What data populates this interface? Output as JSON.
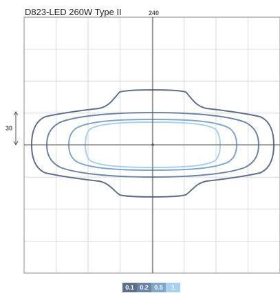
{
  "title": "D823-LED 260W Type II",
  "scale": {
    "horizontal_label": "240",
    "vertical_label": "30"
  },
  "grid": {
    "columns": 8,
    "rows": 8
  },
  "colors": {
    "iso_0_1": "#5c6f8c",
    "iso_0_2": "#6a84a8",
    "iso_0_5": "#7fa6cc",
    "iso_1": "#a8d0f0",
    "center_mark": "#555555"
  },
  "legend": [
    {
      "label": "0.1",
      "color": "#5c6f8c"
    },
    {
      "label": "0.2",
      "color": "#6a84a8"
    },
    {
      "label": "0.5",
      "color": "#7fa6cc"
    },
    {
      "label": "1",
      "color": "#a8d0f0"
    }
  ]
}
